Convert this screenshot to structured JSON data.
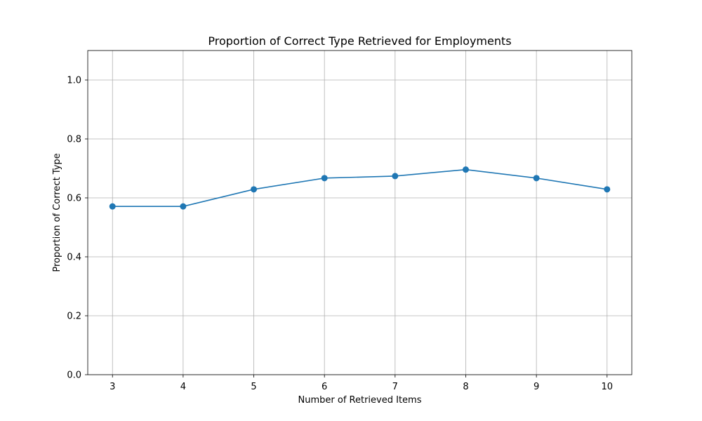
{
  "chart_data": {
    "type": "line",
    "title": "Proportion of Correct Type Retrieved for Employments",
    "xlabel": "Number of Retrieved Items",
    "ylabel": "Proportion of Correct Type",
    "x": [
      3,
      4,
      5,
      6,
      7,
      8,
      9,
      10
    ],
    "series": [
      {
        "values": [
          0.571,
          0.571,
          0.629,
          0.667,
          0.674,
          0.696,
          0.667,
          0.629
        ],
        "color": "#1f77b4",
        "marker": "circle"
      }
    ],
    "xlim": [
      2.65,
      10.35
    ],
    "ylim": [
      0,
      1.1
    ],
    "xticks": [
      "3",
      "4",
      "5",
      "6",
      "7",
      "8",
      "9",
      "10"
    ],
    "yticks": [
      "0.0",
      "0.2",
      "0.4",
      "0.6",
      "0.8",
      "1.0"
    ],
    "grid": true
  }
}
